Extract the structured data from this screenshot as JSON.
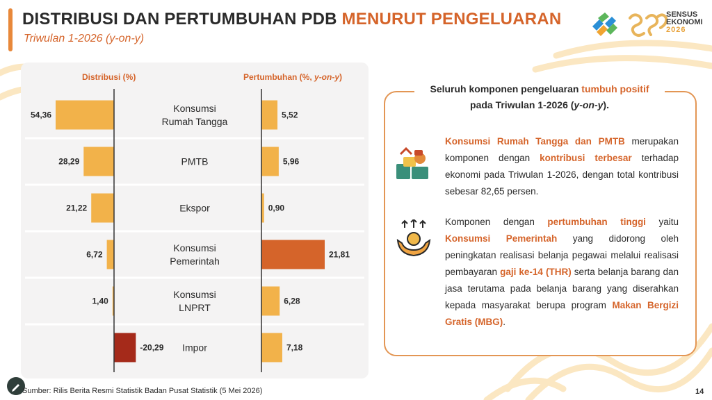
{
  "header": {
    "title_main": "DISTRIBUSI DAN PERTUMBUHAN PDB ",
    "title_highlight": "MENURUT PENGELUARAN",
    "subtitle": "Triwulan 1-2026 (y-on-y)"
  },
  "logo": {
    "icon": "bps-logo-icon",
    "line1": "SENSUS",
    "line2": "EKONOMI",
    "line3": "2026"
  },
  "chart_data": {
    "type": "bar",
    "categories": [
      [
        "Konsumsi",
        "Rumah Tangga"
      ],
      [
        "PMTB"
      ],
      [
        "Ekspor"
      ],
      [
        "Konsumsi",
        "Pemerintah"
      ],
      [
        "Konsumsi",
        "LNPRT"
      ],
      [
        "Impor"
      ]
    ],
    "series": [
      {
        "name": "Distribusi (%)",
        "values": [
          54.36,
          28.29,
          21.22,
          6.72,
          1.4,
          -20.29
        ],
        "labels": [
          "54,36",
          "28,29",
          "21,22",
          "6,72",
          "1,40",
          "-20,29"
        ]
      },
      {
        "name": "Pertumbuhan (%, y-on-y)",
        "values": [
          5.52,
          5.96,
          0.9,
          21.81,
          6.28,
          7.18
        ],
        "labels": [
          "5,52",
          "5,96",
          "0,90",
          "21,81",
          "6,28",
          "7,18"
        ]
      }
    ],
    "colors": {
      "bar": "#f2b24a",
      "negative": "#a52a1a",
      "highlight": "#d5642a",
      "axis": "#333333"
    }
  },
  "col_heads": {
    "left": "Distribusi (%)",
    "right_a": "Pertumbuhan (%, ",
    "right_b": "y-on-y",
    "right_c": ")"
  },
  "info": {
    "head_a": "Seluruh komponen pengeluaran ",
    "head_hl": "tumbuh positif",
    "head_b": "pada Triwulan 1-2026 (",
    "head_it": "y-on-y",
    "head_c": ").",
    "p1_hl1": "Konsumsi Rumah Tangga dan PMTB",
    "p1_t1": " merupakan komponen dengan ",
    "p1_hl2": "kontribusi terbesar",
    "p1_t2": " terhadap ekonomi pada Triwulan 1-2026, dengan total kontribusi sebesar 82,65 persen.",
    "p1_icon": "shopping-goods-icon",
    "p2_t1": "Komponen dengan ",
    "p2_hl1": "pertumbuhan tinggi",
    "p2_t2": " yaitu ",
    "p2_hl2": "Konsumsi Pemerintah",
    "p2_t3": " yang didorong oleh peningkatan realisasi belanja pegawai melalui realisasi pembayaran ",
    "p2_hl3": "gaji ke-14 (THR)",
    "p2_t4": " serta belanja barang dan jasa terutama pada belanja barang yang diserahkan kepada masyarakat berupa program ",
    "p2_hl4": "Makan Bergizi Gratis (MBG)",
    "p2_t5": ".",
    "p2_icon": "hands-money-growth-icon"
  },
  "footer": {
    "source": "Sumber: Rilis Berita Resmi Statistik Badan Pusat Statistik (5 Mei 2026)",
    "page": "14",
    "pen_icon": "pen-icon"
  }
}
